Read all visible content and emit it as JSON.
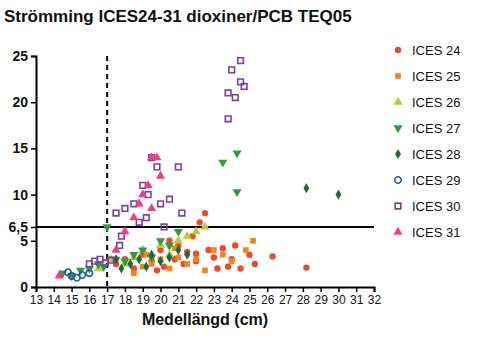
{
  "chart_data": {
    "type": "scatter",
    "title": "Strömming ICES24-31 dioxiner/PCB TEQ05",
    "x_label": "Medellängd (cm)",
    "xlim": [
      13,
      32
    ],
    "xticks": [
      13,
      14,
      15,
      16,
      17,
      18,
      19,
      20,
      21,
      22,
      23,
      24,
      25,
      26,
      27,
      28,
      29,
      30,
      31,
      32
    ],
    "ylim": [
      0,
      25
    ],
    "yticks": [
      0,
      5,
      {
        "value": 6.5,
        "label": "6,5"
      },
      10,
      15,
      20,
      25
    ],
    "legend": "right",
    "grid": false,
    "reference_lines": [
      {
        "axis": "y",
        "value": 6.5,
        "line_style": "solid"
      },
      {
        "axis": "x",
        "value": 17,
        "line_style": "dashed"
      }
    ],
    "series": [
      {
        "name": "ICES 24",
        "color": "#ec4a2c",
        "marker": "circle",
        "x": [
          17.5,
          18,
          18.5,
          19,
          19.5,
          20,
          20.2,
          20.8,
          21,
          21.3,
          21.5,
          21.8,
          22,
          22.2,
          22.5,
          22.7,
          23,
          23.2,
          23.5,
          23.8,
          24,
          24.2,
          24.5,
          25,
          25.3,
          26.3,
          28.2,
          22,
          20.5,
          19.8
        ],
        "values": [
          2.5,
          3,
          2,
          3.5,
          2.8,
          4,
          2.2,
          3,
          4.5,
          2.5,
          3.8,
          5.5,
          2.8,
          7,
          8,
          4,
          3.2,
          2,
          4.2,
          2.2,
          3,
          4.5,
          2,
          3.5,
          2.5,
          3.3,
          2.1,
          3.6,
          5,
          1.8
        ]
      },
      {
        "name": "ICES 25",
        "color": "#f5821f",
        "marker": "square",
        "x": [
          18.5,
          19,
          19.5,
          20,
          20.5,
          21,
          21.5,
          22,
          22.5,
          23,
          23.5,
          24,
          24.8,
          25.2,
          20.8,
          19.2
        ],
        "values": [
          1.5,
          2.2,
          2.5,
          3,
          2,
          3.2,
          2.5,
          3,
          1.8,
          4,
          3.5,
          2.8,
          4,
          5,
          4.2,
          3.5
        ]
      },
      {
        "name": "ICES 26",
        "color": "#b8cc33",
        "marker": "triangle",
        "x": [
          16.5,
          17.2,
          18,
          19,
          20,
          21,
          21.5,
          22,
          22.5,
          20.5,
          18.5
        ],
        "values": [
          2,
          3,
          2.5,
          4,
          4.5,
          5,
          5.5,
          6,
          6.5,
          3.5,
          3.2
        ]
      },
      {
        "name": "ICES 27",
        "color": "#2f9d3f",
        "marker": "triangle-down",
        "x": [
          14.5,
          15,
          15.5,
          16,
          16.5,
          17,
          17.5,
          18,
          18.5,
          19,
          19.5,
          20,
          20.5,
          21,
          23.5,
          24.3,
          24.3,
          16.8
        ],
        "values": [
          1.5,
          1.2,
          1.8,
          2,
          2.5,
          6.5,
          3,
          2.8,
          3.5,
          4,
          3.2,
          5,
          4.5,
          6,
          13.5,
          14.5,
          10.3,
          2.2
        ]
      },
      {
        "name": "ICES 28",
        "color": "#1d6b3a",
        "marker": "diamond",
        "x": [
          17.8,
          18.3,
          18.8,
          19.2,
          19.5,
          20,
          20.5,
          21,
          21.5,
          28.2,
          30,
          17.5
        ],
        "values": [
          2,
          2.5,
          3,
          2.2,
          3.5,
          2.8,
          3.2,
          4,
          3.5,
          10.7,
          10,
          3
        ]
      },
      {
        "name": "ICES 29",
        "color": "#1f5aa8",
        "marker": "open-circle",
        "x": [
          15,
          15.3,
          15.6,
          16,
          14.8
        ],
        "values": [
          1.2,
          1,
          1.3,
          1.5,
          1.6
        ]
      },
      {
        "name": "ICES 30",
        "color": "#7b3fa0",
        "marker": "open-square",
        "x": [
          16,
          16.3,
          16.6,
          16.9,
          17.2,
          17.5,
          17.8,
          18,
          18.5,
          18.8,
          19,
          19.3,
          19.5,
          19.8,
          20,
          20.2,
          20.5,
          21,
          21.2,
          19.2,
          23.8,
          24,
          24.2,
          24.5,
          24.5,
          24.7,
          23.8,
          17.7
        ],
        "values": [
          2.5,
          2.8,
          3,
          2.6,
          2.9,
          8,
          5.5,
          8.5,
          9,
          7,
          11,
          10,
          14,
          13,
          9,
          6.5,
          9.5,
          13,
          8,
          7.5,
          21,
          23.5,
          20.5,
          24.5,
          22.2,
          21.7,
          18.2,
          4.5
        ]
      },
      {
        "name": "ICES 31",
        "color": "#ee3e8a",
        "marker": "triangle",
        "x": [
          14.3,
          17.5,
          18,
          18.5,
          19,
          19.3,
          19.5,
          19.8,
          20,
          18.8,
          19.5
        ],
        "values": [
          1.2,
          4,
          6,
          7.5,
          10,
          11,
          14,
          14,
          12,
          9,
          8.5
        ]
      }
    ]
  }
}
